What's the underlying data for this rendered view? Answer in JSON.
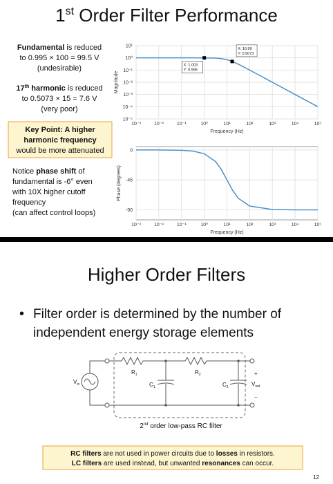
{
  "title": {
    "main": "1",
    "sup": "st",
    "rest": " Order Filter Performance"
  },
  "left_notes": {
    "p1": [
      "Fundamental",
      " is reduced",
      "to 0.995 × 100 = 99.5 V",
      "(undesirable)"
    ],
    "p2": [
      "17",
      "th",
      " harmonic",
      " is reduced",
      "to 0.5073 × 15 = 7.6 V",
      "(very poor)"
    ],
    "key_point": [
      "Key Point: A higher",
      "harmonic frequency",
      "would be more attenuated"
    ],
    "p4": [
      "Notice ",
      "phase shift",
      " of",
      "fundamental is -6° even",
      "with 10X higher cutoff",
      "frequency",
      "(can affect control loops)"
    ]
  },
  "chart_data": [
    {
      "type": "line",
      "y_label": "Magnitude",
      "x_label": "Frequency (Hz)",
      "xlog": true,
      "ylog": true,
      "grid": true,
      "x": [
        0.001,
        0.01,
        0.1,
        0.316,
        1,
        3.16,
        5.62,
        10,
        17.8,
        31.6,
        100,
        1000,
        10000,
        100000
      ],
      "series": [
        {
          "color": "#4a90c8",
          "values": [
            1,
            1,
            1,
            1,
            0.995,
            0.954,
            0.872,
            0.707,
            0.49,
            0.302,
            0.0995,
            0.01,
            0.001,
            0.0001
          ]
        }
      ],
      "xlim": [
        0.001,
        100000
      ],
      "xticks": [
        {
          "value": 0.001,
          "label": "10⁻³"
        },
        {
          "value": 0.01,
          "label": "10⁻²"
        },
        {
          "value": 0.1,
          "label": "10⁻¹"
        },
        {
          "value": 1,
          "label": "10⁰"
        },
        {
          "value": 10,
          "label": "10¹"
        },
        {
          "value": 100,
          "label": "10²"
        },
        {
          "value": 1000,
          "label": "10³"
        },
        {
          "value": 10000,
          "label": "10⁴"
        },
        {
          "value": 100000,
          "label": "10⁵"
        }
      ],
      "ylim": [
        1e-05,
        10
      ],
      "yticks": [
        {
          "value": 10,
          "label": "10¹"
        },
        {
          "value": 1,
          "label": "10⁰"
        },
        {
          "value": 0.1,
          "label": "10⁻¹"
        },
        {
          "value": 0.01,
          "label": "10⁻²"
        },
        {
          "value": 0.001,
          "label": "10⁻³"
        },
        {
          "value": 0.0001,
          "label": "10⁻⁴"
        },
        {
          "value": 1e-05,
          "label": "10⁻⁵"
        }
      ],
      "datatips": [
        {
          "x": 1.003,
          "y": 0.995,
          "label_x": "X: 1.003",
          "label_y": "Y: 0.995"
        },
        {
          "x": 16.99,
          "y": 0.5073,
          "label_x": "X: 16.99",
          "label_y": "Y: 0.5073"
        }
      ]
    },
    {
      "type": "line",
      "y_label": "Phase (degrees)",
      "x_label": "Frequency (Hz)",
      "xlog": true,
      "ylog": false,
      "grid": true,
      "x": [
        0.001,
        0.01,
        0.1,
        0.316,
        1,
        3.16,
        5.62,
        10,
        17.8,
        31.6,
        100,
        1000,
        10000,
        100000
      ],
      "series": [
        {
          "color": "#4a90c8",
          "values": [
            0,
            -0.06,
            -0.57,
            -1.8,
            -5.7,
            -17.5,
            -29.3,
            -45,
            -60.7,
            -72.5,
            -84.3,
            -89.4,
            -89.9,
            -90
          ]
        }
      ],
      "xlim": [
        0.001,
        100000
      ],
      "xticks": [
        {
          "value": 0.001,
          "label": "10⁻³"
        },
        {
          "value": 0.01,
          "label": "10⁻²"
        },
        {
          "value": 0.1,
          "label": "10⁻¹"
        },
        {
          "value": 1,
          "label": "10⁰"
        },
        {
          "value": 10,
          "label": "10¹"
        },
        {
          "value": 100,
          "label": "10²"
        },
        {
          "value": 1000,
          "label": "10³"
        },
        {
          "value": 10000,
          "label": "10⁴"
        },
        {
          "value": 100000,
          "label": "10⁵"
        }
      ],
      "ylim": [
        -105,
        5
      ],
      "yticks": [
        0,
        -45,
        -90
      ]
    }
  ],
  "section2": {
    "title": "Higher Order Filters",
    "bullet": "•",
    "lines": [
      "Filter order is determined by the number of",
      "independent energy storage elements"
    ]
  },
  "circuit": {
    "R1": [
      "R",
      "1"
    ],
    "R2": [
      "R",
      "2"
    ],
    "C1": [
      "C",
      "1"
    ],
    "C2": [
      "C",
      "2"
    ],
    "Vin": [
      "V",
      "in"
    ],
    "Vout": [
      "V",
      "out"
    ],
    "plus": "+",
    "minus": "−",
    "caption": [
      "2",
      "nd",
      " order low-pass RC filter"
    ]
  },
  "note": [
    "RC filters",
    " are not used in power circuits due to ",
    "losses",
    " in resistors.",
    "LC filters",
    " are used instead, but unwanted ",
    "resonances",
    " can occur."
  ],
  "page_number": 12
}
